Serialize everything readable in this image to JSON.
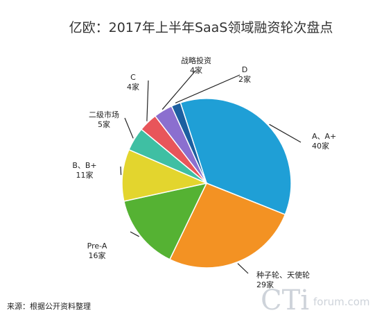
{
  "chart_data": {
    "type": "pie",
    "title": "亿欧：2017年上半年SaaS领域融资轮次盘点",
    "slices": [
      {
        "name_lines": [
          "A、A+"
        ],
        "value_label": "40家",
        "value": 40,
        "color": "#1f9fd6"
      },
      {
        "name_lines": [
          "种子轮、天使轮"
        ],
        "value_label": "29家",
        "value": 29,
        "color": "#f39223"
      },
      {
        "name_lines": [
          "Pre-A"
        ],
        "value_label": "16家",
        "value": 16,
        "color": "#55b233"
      },
      {
        "name_lines": [
          "B、B+"
        ],
        "value_label": "11家",
        "value": 11,
        "color": "#e3d52e"
      },
      {
        "name_lines": [
          "二级市场"
        ],
        "value_label": "5家",
        "value": 5,
        "color": "#3fbfa3"
      },
      {
        "name_lines": [
          "C"
        ],
        "value_label": "4家",
        "value": 4,
        "color": "#e8555a"
      },
      {
        "name_lines": [
          "战略投资"
        ],
        "value_label": "4家",
        "value": 4,
        "color": "#8b6fcf"
      },
      {
        "name_lines": [
          "D"
        ],
        "value_label": "2家",
        "value": 2,
        "color": "#1c5fa0"
      }
    ]
  },
  "footer": {
    "source": "来源：根据公开资料整理",
    "watermark_logo": "CTi",
    "watermark_text": "forum.com"
  }
}
